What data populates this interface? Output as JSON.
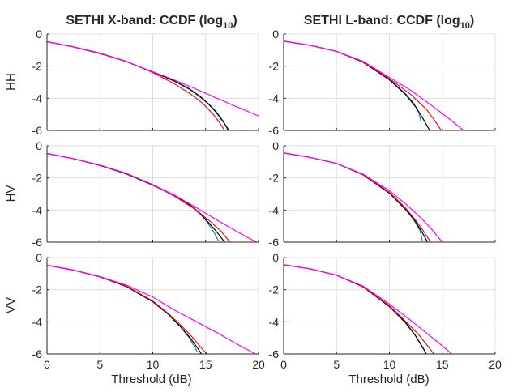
{
  "chart_data": {
    "type": "line",
    "xlabel": "Threshold (dB)",
    "xlim": [
      0,
      20
    ],
    "ylim": [
      -6,
      0
    ],
    "x_ticks": [
      "0",
      "5",
      "10",
      "15",
      "20"
    ],
    "y_ticks": [
      "0",
      "-2",
      "-4",
      "-6"
    ],
    "grid": true,
    "legend": "none",
    "columns": [
      {
        "title_main": "SETHI X-band: CCDF (log",
        "title_sub": "10",
        "title_close": ")"
      },
      {
        "title_main": "SETHI L-band: CCDF (log",
        "title_sub": "10",
        "title_close": ")"
      }
    ],
    "rows": [
      "HH",
      "HV",
      "VV"
    ],
    "series_colors": [
      "#1b7fa8",
      "#000000",
      "#e8141b",
      "#ff00ff"
    ],
    "panels": [
      {
        "band": "X-band",
        "pol": "HH",
        "series": [
          {
            "color": "#1b7fa8",
            "x": [
              0,
              2.5,
              5,
              7.5,
              10,
              12,
              13.5,
              14.5,
              15.3,
              16,
              16.7,
              17.1
            ],
            "y": [
              -0.48,
              -0.8,
              -1.21,
              -1.72,
              -2.36,
              -2.88,
              -3.42,
              -3.88,
              -4.35,
              -4.82,
              -5.45,
              -6
            ]
          },
          {
            "color": "#000000",
            "x": [
              0,
              2.5,
              5,
              7.5,
              10,
              12,
              13.5,
              14.5,
              15.3,
              16,
              16.7,
              17.2
            ],
            "y": [
              -0.48,
              -0.8,
              -1.21,
              -1.72,
              -2.36,
              -2.92,
              -3.45,
              -3.92,
              -4.38,
              -4.88,
              -5.5,
              -6
            ]
          },
          {
            "color": "#e8141b",
            "x": [
              0,
              2.5,
              5,
              7.5,
              10,
              12,
              13.5,
              14.7,
              15.7,
              16.3,
              16.8
            ],
            "y": [
              -0.48,
              -0.79,
              -1.18,
              -1.7,
              -2.4,
              -3.08,
              -3.7,
              -4.3,
              -4.98,
              -5.5,
              -6
            ]
          },
          {
            "color": "#ff00ff",
            "x": [
              0,
              2.5,
              5,
              7.5,
              10,
              12,
              14,
              16,
              18,
              20
            ],
            "y": [
              -0.48,
              -0.8,
              -1.2,
              -1.72,
              -2.35,
              -2.85,
              -3.4,
              -3.98,
              -4.55,
              -5.1
            ]
          }
        ]
      },
      {
        "band": "L-band",
        "pol": "HH",
        "series": [
          {
            "color": "#1b7fa8",
            "x": [
              0,
              2.5,
              5,
              7.5,
              10,
              11.5,
              12.3,
              12.8,
              13.0
            ],
            "y": [
              -0.45,
              -0.7,
              -1.08,
              -1.75,
              -2.82,
              -3.7,
              -4.3,
              -4.9,
              -5.5
            ]
          },
          {
            "color": "#000000",
            "x": [
              0,
              2.5,
              5,
              7.5,
              10,
              11.5,
              12.5,
              13.2,
              13.8
            ],
            "y": [
              -0.45,
              -0.7,
              -1.08,
              -1.75,
              -2.85,
              -3.75,
              -4.55,
              -5.3,
              -6
            ]
          },
          {
            "color": "#e8141b",
            "x": [
              0,
              2.5,
              5,
              7.5,
              10,
              12,
              13.5,
              14.3,
              14.9
            ],
            "y": [
              -0.45,
              -0.7,
              -1.08,
              -1.72,
              -2.78,
              -3.75,
              -4.7,
              -5.4,
              -6
            ]
          },
          {
            "color": "#ff00ff",
            "x": [
              0,
              2.5,
              5,
              7.5,
              10,
              12,
              14,
              15.5,
              17
            ],
            "y": [
              -0.45,
              -0.7,
              -1.08,
              -1.7,
              -2.7,
              -3.5,
              -4.45,
              -5.2,
              -6
            ]
          }
        ]
      },
      {
        "band": "X-band",
        "pol": "HV",
        "series": [
          {
            "color": "#1b7fa8",
            "x": [
              0,
              2.5,
              5,
              7.5,
              10,
              12,
              13.5,
              14.5,
              15.2,
              15.8,
              16.2
            ],
            "y": [
              -0.48,
              -0.8,
              -1.22,
              -1.75,
              -2.45,
              -3.05,
              -3.65,
              -4.2,
              -4.8,
              -5.4,
              -5.9
            ]
          },
          {
            "color": "#000000",
            "x": [
              0,
              2.5,
              5,
              7.5,
              10,
              12,
              13.5,
              14.5,
              15.3,
              16.1,
              16.8
            ],
            "y": [
              -0.48,
              -0.8,
              -1.22,
              -1.75,
              -2.45,
              -3.1,
              -3.7,
              -4.25,
              -4.8,
              -5.4,
              -6
            ]
          },
          {
            "color": "#e8141b",
            "x": [
              0,
              2.5,
              5,
              7.5,
              10,
              12,
              14,
              15.5,
              16.5,
              17.3
            ],
            "y": [
              -0.48,
              -0.8,
              -1.2,
              -1.72,
              -2.42,
              -3.12,
              -3.95,
              -4.75,
              -5.35,
              -6
            ]
          },
          {
            "color": "#ff00ff",
            "x": [
              0,
              2.5,
              5,
              7.5,
              10,
              12,
              14,
              16,
              18,
              19.8
            ],
            "y": [
              -0.48,
              -0.8,
              -1.2,
              -1.72,
              -2.42,
              -3.05,
              -3.8,
              -4.6,
              -5.35,
              -6
            ]
          }
        ]
      },
      {
        "band": "L-band",
        "pol": "HV",
        "series": [
          {
            "color": "#1b7fa8",
            "x": [
              0,
              2.5,
              5,
              7.5,
              10,
              11.5,
              12.3,
              12.9,
              13.1
            ],
            "y": [
              -0.45,
              -0.72,
              -1.1,
              -1.8,
              -2.95,
              -3.9,
              -4.6,
              -5.3,
              -5.9
            ]
          },
          {
            "color": "#000000",
            "x": [
              0,
              2.5,
              5,
              7.5,
              10,
              11.5,
              12.5,
              13.1,
              13.6
            ],
            "y": [
              -0.45,
              -0.72,
              -1.1,
              -1.8,
              -2.95,
              -3.95,
              -4.75,
              -5.4,
              -6
            ]
          },
          {
            "color": "#e8141b",
            "x": [
              0,
              2.5,
              5,
              7.5,
              10,
              11.5,
              12.5,
              13.2,
              13.9
            ],
            "y": [
              -0.45,
              -0.72,
              -1.1,
              -1.78,
              -2.9,
              -3.85,
              -4.65,
              -5.3,
              -6
            ]
          },
          {
            "color": "#ff00ff",
            "x": [
              0,
              2.5,
              5,
              7.5,
              10,
              11.5,
              13,
              14,
              15
            ],
            "y": [
              -0.45,
              -0.72,
              -1.1,
              -1.76,
              -2.8,
              -3.6,
              -4.5,
              -5.2,
              -6
            ]
          }
        ]
      },
      {
        "band": "X-band",
        "pol": "VV",
        "series": [
          {
            "color": "#1b7fa8",
            "x": [
              0,
              2.5,
              5,
              7.5,
              10,
              11.5,
              12.6,
              13.4,
              13.9,
              14.2
            ],
            "y": [
              -0.48,
              -0.78,
              -1.2,
              -1.8,
              -2.75,
              -3.55,
              -4.3,
              -4.95,
              -5.5,
              -5.85
            ]
          },
          {
            "color": "#000000",
            "x": [
              0,
              2.5,
              5,
              7.5,
              10,
              11.5,
              12.7,
              13.6,
              14.2,
              14.6
            ],
            "y": [
              -0.48,
              -0.78,
              -1.2,
              -1.8,
              -2.75,
              -3.55,
              -4.35,
              -5.05,
              -5.6,
              -6
            ]
          },
          {
            "color": "#e8141b",
            "x": [
              0,
              2.5,
              5,
              7.5,
              10,
              11.5,
              12.8,
              13.8,
              14.5,
              15.1
            ],
            "y": [
              -0.48,
              -0.78,
              -1.19,
              -1.77,
              -2.7,
              -3.5,
              -4.3,
              -5.0,
              -5.55,
              -6
            ]
          },
          {
            "color": "#ff00ff",
            "x": [
              0,
              2.5,
              5,
              7.5,
              10,
              12,
              14,
              16,
              18,
              19.7
            ],
            "y": [
              -0.48,
              -0.78,
              -1.18,
              -1.72,
              -2.45,
              -3.25,
              -3.95,
              -4.65,
              -5.4,
              -6
            ]
          }
        ]
      },
      {
        "band": "L-band",
        "pol": "VV",
        "series": [
          {
            "color": "#1b7fa8",
            "x": [
              0,
              2.5,
              5,
              7.5,
              10,
              11.5,
              12.3,
              12.9,
              13.3
            ],
            "y": [
              -0.45,
              -0.7,
              -1.1,
              -1.82,
              -3.05,
              -4.0,
              -4.7,
              -5.3,
              -5.75
            ]
          },
          {
            "color": "#000000",
            "x": [
              0,
              2.5,
              5,
              7.5,
              10,
              11.5,
              12.4,
              13.0,
              13.5
            ],
            "y": [
              -0.45,
              -0.7,
              -1.1,
              -1.82,
              -3.05,
              -4.05,
              -4.8,
              -5.45,
              -6
            ]
          },
          {
            "color": "#e8141b",
            "x": [
              0,
              2.5,
              5,
              7.5,
              10,
              11.5,
              12.7,
              13.5,
              14.2
            ],
            "y": [
              -0.45,
              -0.7,
              -1.1,
              -1.8,
              -3.0,
              -3.95,
              -4.75,
              -5.4,
              -6
            ]
          },
          {
            "color": "#ff00ff",
            "x": [
              0,
              2.5,
              5,
              7.5,
              10,
              12,
              13.5,
              15,
              15.9
            ],
            "y": [
              -0.45,
              -0.7,
              -1.1,
              -1.77,
              -2.9,
              -3.9,
              -4.7,
              -5.5,
              -6
            ]
          }
        ]
      }
    ]
  }
}
